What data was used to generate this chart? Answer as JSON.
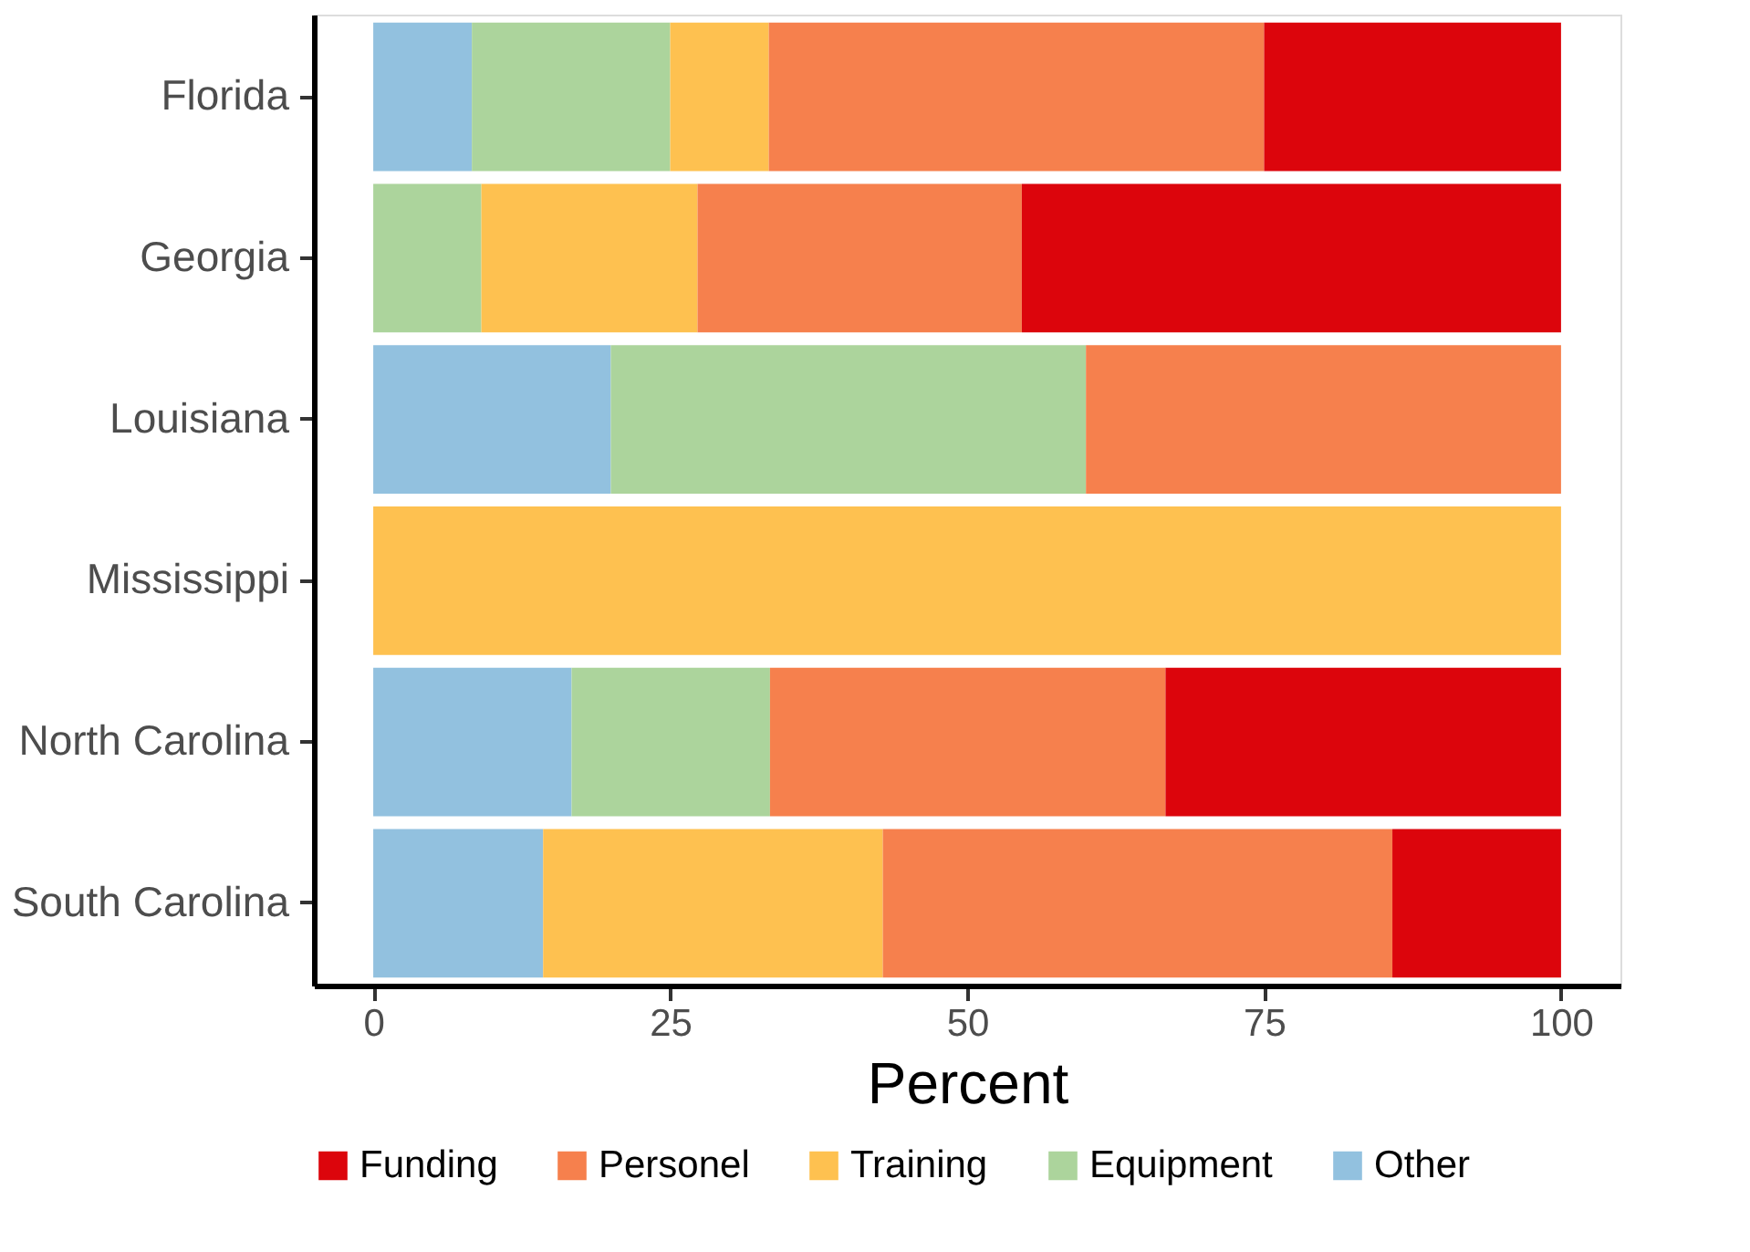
{
  "chart_data": {
    "type": "bar",
    "orientation": "horizontal",
    "stacked": true,
    "xlabel": "Percent",
    "categories": [
      "Florida",
      "Georgia",
      "Louisiana",
      "Mississippi",
      "North Carolina",
      "South Carolina"
    ],
    "series": [
      {
        "name": "Other",
        "color": "#92c1df",
        "values": [
          8.3,
          0,
          20,
          0,
          16.7,
          14.3
        ]
      },
      {
        "name": "Equipment",
        "color": "#acd49c",
        "values": [
          16.7,
          9.1,
          40,
          0,
          16.7,
          0
        ]
      },
      {
        "name": "Training",
        "color": "#fec150",
        "values": [
          8.3,
          18.2,
          0,
          100,
          0,
          28.6
        ]
      },
      {
        "name": "Personel",
        "color": "#f6804d",
        "values": [
          41.7,
          27.3,
          40,
          0,
          33.3,
          42.9
        ]
      },
      {
        "name": "Funding",
        "color": "#dc050c",
        "values": [
          25,
          45.4,
          0,
          0,
          33.3,
          14.2
        ]
      }
    ],
    "xlim": [
      -5,
      105
    ],
    "xticks": [
      0,
      25,
      50,
      75,
      100
    ],
    "grid": false,
    "legend": "bottom"
  }
}
